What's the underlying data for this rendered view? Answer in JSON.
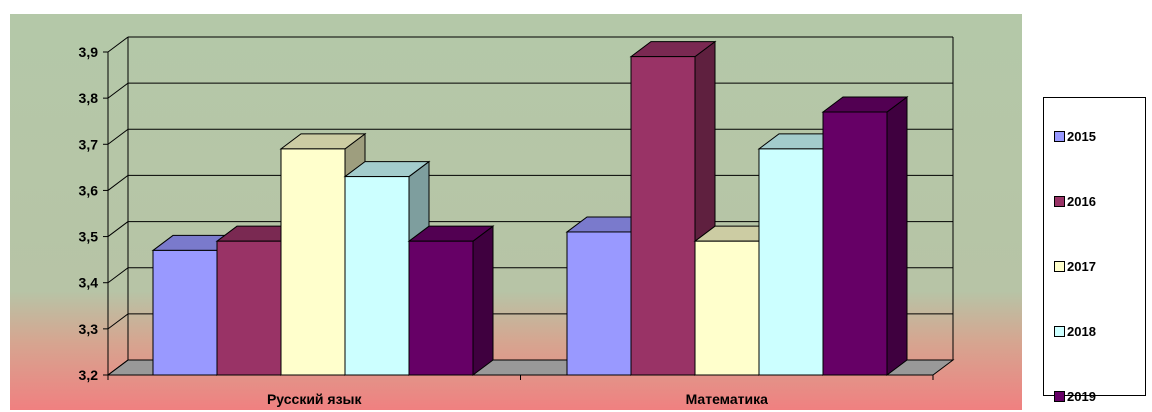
{
  "chart_data": {
    "type": "bar",
    "categories": [
      "Русский язык",
      "Математика"
    ],
    "series": [
      {
        "name": "2015",
        "color": "#9999FF",
        "values": [
          3.47,
          3.51
        ]
      },
      {
        "name": "2016",
        "color": "#993366",
        "values": [
          3.49,
          3.89
        ]
      },
      {
        "name": "2017",
        "color": "#FFFFCC",
        "values": [
          3.69,
          3.49
        ]
      },
      {
        "name": "2018",
        "color": "#CCFFFF",
        "values": [
          3.63,
          3.69
        ]
      },
      {
        "name": "2019",
        "color": "#660066",
        "values": [
          3.49,
          3.77
        ]
      }
    ],
    "yticks": [
      "3,2",
      "3,3",
      "3,4",
      "3,5",
      "3,6",
      "3,7",
      "3,8",
      "3,9"
    ],
    "ylim": [
      3.2,
      3.9
    ],
    "grid": true,
    "legend_position": "right",
    "style": "3d-column",
    "background": "gradient-green-to-red"
  }
}
